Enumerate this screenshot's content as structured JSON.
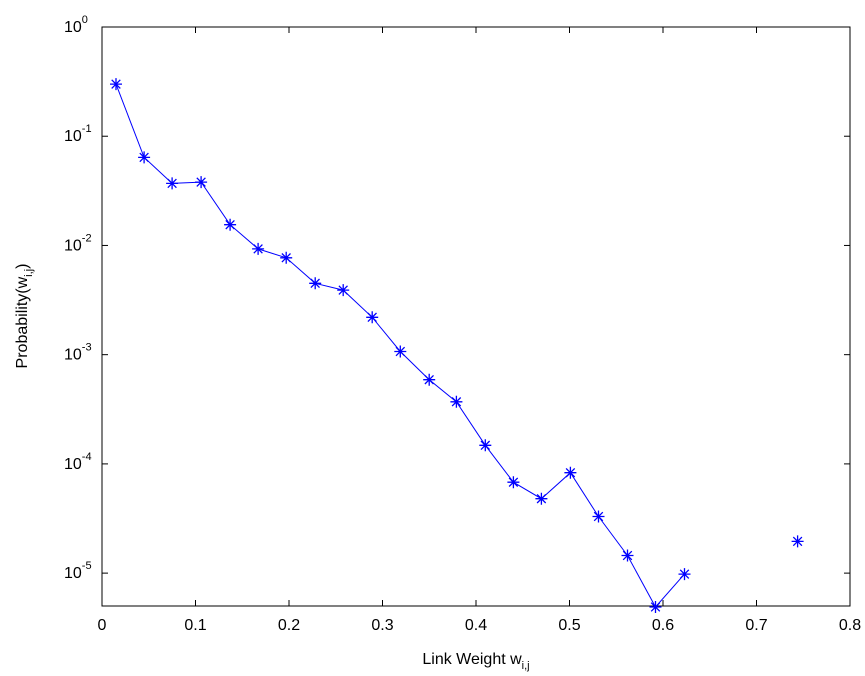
{
  "chart_data": {
    "type": "line",
    "title": "",
    "xlabel": {
      "text": "Link Weight w",
      "subscript": "i,j"
    },
    "ylabel": {
      "text": "Probability(w",
      "subscript": "i,j",
      "suffix": ")"
    },
    "xlim": [
      0,
      0.8
    ],
    "ylim": [
      5e-06,
      1
    ],
    "yscale": "log",
    "grid": false,
    "legend": "none",
    "x_ticks": [
      {
        "value": 0,
        "label": "0"
      },
      {
        "value": 0.1,
        "label": "0.1"
      },
      {
        "value": 0.2,
        "label": "0.2"
      },
      {
        "value": 0.3,
        "label": "0.3"
      },
      {
        "value": 0.4,
        "label": "0.4"
      },
      {
        "value": 0.5,
        "label": "0.5"
      },
      {
        "value": 0.6,
        "label": "0.6"
      },
      {
        "value": 0.7,
        "label": "0.7"
      },
      {
        "value": 0.8,
        "label": "0.8"
      }
    ],
    "y_ticks": [
      {
        "value": 1.0,
        "base": "10",
        "exp": "0"
      },
      {
        "value": 0.1,
        "base": "10",
        "exp": "-1"
      },
      {
        "value": 0.01,
        "base": "10",
        "exp": "-2"
      },
      {
        "value": 0.001,
        "base": "10",
        "exp": "-3"
      },
      {
        "value": 0.0001,
        "base": "10",
        "exp": "-4"
      },
      {
        "value": 1e-05,
        "base": "10",
        "exp": "-5"
      }
    ],
    "series": [
      {
        "color": "#0000ff",
        "marker": "asterisk",
        "segments": [
          [
            [
              0.015,
              0.3
            ],
            [
              0.045,
              0.064
            ],
            [
              0.075,
              0.037
            ],
            [
              0.106,
              0.038
            ],
            [
              0.137,
              0.0155
            ],
            [
              0.167,
              0.0093
            ],
            [
              0.197,
              0.0077
            ],
            [
              0.228,
              0.0045
            ],
            [
              0.258,
              0.0039
            ],
            [
              0.289,
              0.0022
            ],
            [
              0.319,
              0.00107
            ],
            [
              0.35,
              0.00059
            ],
            [
              0.379,
              0.00037
            ],
            [
              0.41,
              0.000148
            ],
            [
              0.44,
              6.8e-05
            ],
            [
              0.47,
              4.8e-05
            ],
            [
              0.501,
              8.3e-05
            ],
            [
              0.531,
              3.3e-05
            ],
            [
              0.562,
              1.45e-05
            ],
            [
              0.592,
              4.9e-06
            ],
            [
              0.623,
              9.8e-06
            ]
          ],
          [
            [
              0.744,
              1.95e-05
            ]
          ]
        ]
      }
    ]
  }
}
